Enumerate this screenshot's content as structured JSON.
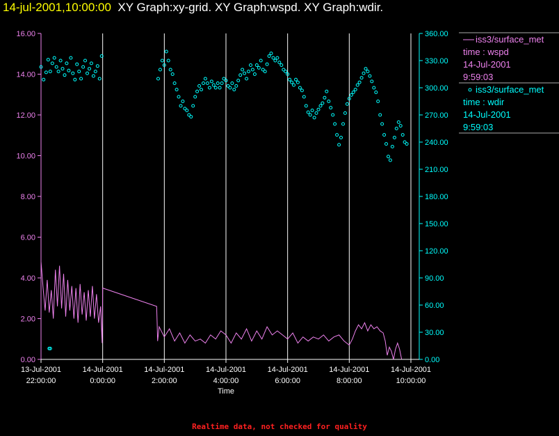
{
  "header": {
    "timestamp": "14-jul-2001,10:00:00",
    "graphs": "XY Graph:xy-grid.  XY Graph:wspd.  XY Graph:wdir."
  },
  "footer": {
    "note": "Realtime data, not checked for quality"
  },
  "legend": [
    {
      "name": "iss3/surface_met",
      "line2": "time : wspd",
      "line3": "14-Jul-2001",
      "line4": "9:59:03",
      "color": "#ee82ee",
      "marker": "line"
    },
    {
      "name": "iss3/surface_met",
      "line2": "time : wdir",
      "line3": "14-Jul-2001",
      "line4": "9:59:03",
      "color": "#00ffff",
      "marker": "circle"
    }
  ],
  "chart_data": {
    "type": "line",
    "xlabel": "Time",
    "x_ticks": [
      {
        "t": 0,
        "line1": "13-Jul-2001",
        "line2": "22:00:00"
      },
      {
        "t": 120,
        "line1": "14-Jul-2001",
        "line2": "0:00:00"
      },
      {
        "t": 240,
        "line1": "14-Jul-2001",
        "line2": "2:00:00"
      },
      {
        "t": 360,
        "line1": "14-Jul-2001",
        "line2": "4:00:00"
      },
      {
        "t": 480,
        "line1": "14-Jul-2001",
        "line2": "6:00:00"
      },
      {
        "t": 600,
        "line1": "14-Jul-2001",
        "line2": "8:00:00"
      },
      {
        "t": 720,
        "line1": "14-Jul-2001",
        "line2": "10:00:00"
      }
    ],
    "x_range_minutes": [
      0,
      720
    ],
    "vertical_grid_minutes": [
      120,
      240,
      360,
      480,
      600,
      720
    ],
    "y_left": {
      "range": [
        0,
        16
      ],
      "ticks": [
        "0.00",
        "2.00",
        "4.00",
        "6.00",
        "8.00",
        "10.00",
        "12.00",
        "14.00",
        "16.00"
      ],
      "color": "#ee82ee"
    },
    "y_right": {
      "range": [
        0,
        360
      ],
      "ticks": [
        "0.00",
        "30.00",
        "60.00",
        "90.00",
        "120.00",
        "150.00",
        "180.00",
        "210.00",
        "240.00",
        "270.00",
        "300.00",
        "330.00",
        "360.00"
      ],
      "color": "#00ffff"
    },
    "series": [
      {
        "name": "iss3/surface_met time : wspd",
        "axis": "left",
        "color": "#ee82ee",
        "points": [
          [
            0,
            4.8
          ],
          [
            4,
            3.5
          ],
          [
            8,
            2.4
          ],
          [
            12,
            3.9
          ],
          [
            16,
            2.3
          ],
          [
            20,
            3.4
          ],
          [
            24,
            2.0
          ],
          [
            28,
            4.4
          ],
          [
            32,
            2.6
          ],
          [
            36,
            4.6
          ],
          [
            40,
            2.5
          ],
          [
            44,
            4.2
          ],
          [
            48,
            2.1
          ],
          [
            52,
            3.9
          ],
          [
            56,
            2.4
          ],
          [
            60,
            3.6
          ],
          [
            64,
            2.0
          ],
          [
            68,
            3.5
          ],
          [
            72,
            1.8
          ],
          [
            76,
            3.7
          ],
          [
            80,
            2.2
          ],
          [
            84,
            3.3
          ],
          [
            88,
            1.9
          ],
          [
            92,
            3.4
          ],
          [
            96,
            2.1
          ],
          [
            100,
            3.6
          ],
          [
            104,
            2.0
          ],
          [
            108,
            3.2
          ],
          [
            112,
            1.8
          ],
          [
            116,
            2.6
          ],
          [
            119,
            0.8
          ],
          [
            120,
            3.5
          ],
          [
            225,
            2.6
          ],
          [
            226,
            1.8
          ],
          [
            227,
            0.9
          ],
          [
            230,
            1.6
          ],
          [
            240,
            1.1
          ],
          [
            250,
            1.5
          ],
          [
            260,
            0.9
          ],
          [
            270,
            1.3
          ],
          [
            280,
            0.8
          ],
          [
            290,
            1.2
          ],
          [
            300,
            0.9
          ],
          [
            310,
            1.0
          ],
          [
            320,
            0.8
          ],
          [
            330,
            1.2
          ],
          [
            340,
            1.0
          ],
          [
            350,
            1.4
          ],
          [
            360,
            1.2
          ],
          [
            370,
            0.8
          ],
          [
            380,
            1.3
          ],
          [
            390,
            1.0
          ],
          [
            400,
            1.5
          ],
          [
            410,
            0.9
          ],
          [
            420,
            1.4
          ],
          [
            430,
            1.0
          ],
          [
            440,
            1.6
          ],
          [
            450,
            1.2
          ],
          [
            460,
            1.4
          ],
          [
            470,
            1.2
          ],
          [
            480,
            1.0
          ],
          [
            490,
            1.3
          ],
          [
            500,
            0.8
          ],
          [
            510,
            1.1
          ],
          [
            520,
            0.9
          ],
          [
            530,
            1.1
          ],
          [
            540,
            1.0
          ],
          [
            550,
            1.2
          ],
          [
            560,
            0.9
          ],
          [
            570,
            1.1
          ],
          [
            580,
            1.2
          ],
          [
            590,
            0.9
          ],
          [
            600,
            0.7
          ],
          [
            606,
            1.0
          ],
          [
            612,
            1.4
          ],
          [
            618,
            1.7
          ],
          [
            624,
            1.5
          ],
          [
            630,
            1.8
          ],
          [
            636,
            1.4
          ],
          [
            642,
            1.7
          ],
          [
            648,
            1.5
          ],
          [
            654,
            1.6
          ],
          [
            660,
            1.4
          ],
          [
            666,
            1.3
          ],
          [
            670,
            0.9
          ],
          [
            674,
            0.2
          ],
          [
            678,
            0.6
          ],
          [
            682,
            0.4
          ],
          [
            686,
            0.0
          ],
          [
            690,
            0.5
          ],
          [
            694,
            0.8
          ],
          [
            698,
            0.5
          ],
          [
            702,
            0.0
          ]
        ]
      },
      {
        "name": "iss3/surface_met time : wdir",
        "axis": "right",
        "color": "#00ffff",
        "points": [
          [
            0,
            323
          ],
          [
            5,
            309
          ],
          [
            10,
            317
          ],
          [
            14,
            331
          ],
          [
            18,
            318
          ],
          [
            22,
            327
          ],
          [
            26,
            333
          ],
          [
            30,
            323
          ],
          [
            34,
            318
          ],
          [
            38,
            330
          ],
          [
            42,
            321
          ],
          [
            46,
            314
          ],
          [
            50,
            327
          ],
          [
            54,
            319
          ],
          [
            58,
            333
          ],
          [
            62,
            316
          ],
          [
            66,
            309
          ],
          [
            70,
            326
          ],
          [
            74,
            318
          ],
          [
            78,
            310
          ],
          [
            82,
            323
          ],
          [
            86,
            330
          ],
          [
            90,
            316
          ],
          [
            94,
            321
          ],
          [
            98,
            327
          ],
          [
            102,
            313
          ],
          [
            106,
            318
          ],
          [
            110,
            324
          ],
          [
            114,
            310
          ],
          [
            118,
            335
          ],
          [
            16,
            12
          ],
          [
            18,
            12
          ],
          [
            228,
            310
          ],
          [
            232,
            320
          ],
          [
            236,
            330
          ],
          [
            240,
            325
          ],
          [
            244,
            340
          ],
          [
            248,
            330
          ],
          [
            252,
            320
          ],
          [
            256,
            315
          ],
          [
            260,
            305
          ],
          [
            264,
            298
          ],
          [
            268,
            290
          ],
          [
            272,
            280
          ],
          [
            276,
            285
          ],
          [
            280,
            277
          ],
          [
            284,
            275
          ],
          [
            288,
            270
          ],
          [
            292,
            268
          ],
          [
            296,
            280
          ],
          [
            300,
            290
          ],
          [
            304,
            296
          ],
          [
            308,
            302
          ],
          [
            312,
            298
          ],
          [
            316,
            305
          ],
          [
            320,
            310
          ],
          [
            324,
            305
          ],
          [
            328,
            300
          ],
          [
            332,
            307
          ],
          [
            336,
            303
          ],
          [
            340,
            300
          ],
          [
            344,
            305
          ],
          [
            348,
            300
          ],
          [
            352,
            305
          ],
          [
            356,
            310
          ],
          [
            360,
            308
          ],
          [
            364,
            302
          ],
          [
            368,
            300
          ],
          [
            372,
            305
          ],
          [
            376,
            298
          ],
          [
            380,
            302
          ],
          [
            384,
            308
          ],
          [
            388,
            314
          ],
          [
            392,
            320
          ],
          [
            396,
            316
          ],
          [
            400,
            310
          ],
          [
            404,
            318
          ],
          [
            408,
            325
          ],
          [
            412,
            320
          ],
          [
            416,
            315
          ],
          [
            420,
            325
          ],
          [
            424,
            322
          ],
          [
            428,
            330
          ],
          [
            432,
            320
          ],
          [
            436,
            318
          ],
          [
            440,
            326
          ],
          [
            444,
            335
          ],
          [
            448,
            338
          ],
          [
            452,
            333
          ],
          [
            456,
            330
          ],
          [
            460,
            333
          ],
          [
            464,
            328
          ],
          [
            468,
            325
          ],
          [
            472,
            320
          ],
          [
            476,
            318
          ],
          [
            480,
            315
          ],
          [
            484,
            309
          ],
          [
            488,
            306
          ],
          [
            492,
            303
          ],
          [
            496,
            309
          ],
          [
            500,
            306
          ],
          [
            504,
            300
          ],
          [
            508,
            297
          ],
          [
            512,
            290
          ],
          [
            516,
            280
          ],
          [
            520,
            273
          ],
          [
            524,
            270
          ],
          [
            528,
            275
          ],
          [
            532,
            267
          ],
          [
            536,
            272
          ],
          [
            540,
            276
          ],
          [
            544,
            280
          ],
          [
            548,
            283
          ],
          [
            552,
            289
          ],
          [
            556,
            296
          ],
          [
            560,
            285
          ],
          [
            564,
            278
          ],
          [
            568,
            270
          ],
          [
            572,
            260
          ],
          [
            576,
            248
          ],
          [
            580,
            237
          ],
          [
            584,
            245
          ],
          [
            588,
            260
          ],
          [
            592,
            272
          ],
          [
            596,
            282
          ],
          [
            600,
            288
          ],
          [
            604,
            292
          ],
          [
            608,
            295
          ],
          [
            612,
            298
          ],
          [
            616,
            303
          ],
          [
            620,
            306
          ],
          [
            624,
            311
          ],
          [
            628,
            316
          ],
          [
            632,
            321
          ],
          [
            636,
            318
          ],
          [
            640,
            313
          ],
          [
            644,
            307
          ],
          [
            648,
            300
          ],
          [
            652,
            295
          ],
          [
            656,
            285
          ],
          [
            660,
            270
          ],
          [
            664,
            260
          ],
          [
            668,
            248
          ],
          [
            672,
            238
          ],
          [
            676,
            224
          ],
          [
            680,
            220
          ],
          [
            684,
            235
          ],
          [
            688,
            245
          ],
          [
            692,
            255
          ],
          [
            696,
            262
          ],
          [
            700,
            258
          ],
          [
            704,
            248
          ],
          [
            708,
            240
          ],
          [
            712,
            238
          ]
        ]
      }
    ],
    "grid": "vertical only",
    "legend_position": "right"
  }
}
